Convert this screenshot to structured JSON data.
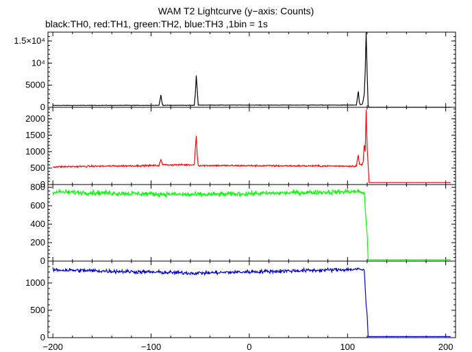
{
  "chart_data": {
    "type": "line",
    "title": "WAM T2 Lightcurve (y−axis: Counts)",
    "subtitle": "black:TH0, red:TH1, green:TH2, blue:TH3 ,1bin = 1s",
    "xlim": [
      -205,
      210
    ],
    "x_ticks": [
      -200,
      -100,
      0,
      100,
      200
    ],
    "x_tick_labels": [
      "−200",
      "−100",
      "0",
      "100",
      "200"
    ],
    "grid": false,
    "panels": [
      {
        "name": "TH0",
        "color": "#000000",
        "ylim": [
          0,
          17000
        ],
        "y_ticks": [
          0,
          5000,
          10000,
          15000
        ],
        "y_tick_labels": [
          "0",
          "5000",
          "10⁴",
          "1.5×10⁴"
        ],
        "baseline": 420,
        "noise": 40,
        "points": [
          [
            -200,
            420
          ],
          [
            -92,
            440
          ],
          [
            -91,
            1500
          ],
          [
            -90,
            2800
          ],
          [
            -89,
            1200
          ],
          [
            -88,
            450
          ],
          [
            -56,
            450
          ],
          [
            -55,
            3000
          ],
          [
            -54,
            7200
          ],
          [
            -53,
            4000
          ],
          [
            -52,
            500
          ],
          [
            109,
            500
          ],
          [
            110,
            2000
          ],
          [
            111,
            3600
          ],
          [
            112,
            1200
          ],
          [
            113,
            600
          ],
          [
            115,
            700
          ],
          [
            116,
            1500
          ],
          [
            117,
            3000
          ],
          [
            118,
            8000
          ],
          [
            119,
            17000
          ],
          [
            120,
            7500
          ],
          [
            121,
            400
          ],
          [
            122,
            0
          ],
          [
            210,
            0
          ]
        ]
      },
      {
        "name": "TH1",
        "color": "#ff0000",
        "ylim": [
          0,
          2350
        ],
        "y_ticks": [
          0,
          500,
          1000,
          1500,
          2000
        ],
        "y_tick_labels": [
          "0",
          "500",
          "1000",
          "1500",
          "2000"
        ],
        "baseline": 560,
        "noise": 22,
        "points": [
          [
            -200,
            540
          ],
          [
            -92,
            580
          ],
          [
            -90,
            760
          ],
          [
            -88,
            600
          ],
          [
            -56,
            600
          ],
          [
            -55,
            1100
          ],
          [
            -54,
            1480
          ],
          [
            -53,
            900
          ],
          [
            -52,
            580
          ],
          [
            109,
            560
          ],
          [
            110,
            750
          ],
          [
            111,
            900
          ],
          [
            112,
            620
          ],
          [
            115,
            600
          ],
          [
            116,
            700
          ],
          [
            117,
            1200
          ],
          [
            118,
            1000
          ],
          [
            119,
            2280
          ],
          [
            120,
            1100
          ],
          [
            121,
            600
          ],
          [
            122,
            60
          ],
          [
            210,
            60
          ]
        ]
      },
      {
        "name": "TH2",
        "color": "#00ff00",
        "ylim": [
          0,
          830
        ],
        "y_ticks": [
          0,
          200,
          400,
          600,
          800
        ],
        "y_tick_labels": [
          "0",
          "200",
          "400",
          "600",
          "800"
        ],
        "baseline": 755,
        "noise": 22,
        "points": [
          [
            -200,
            750
          ],
          [
            -55,
            720
          ],
          [
            110,
            755
          ],
          [
            117,
            740
          ],
          [
            118,
            580
          ],
          [
            119,
            420
          ],
          [
            120,
            280
          ],
          [
            121,
            15
          ],
          [
            210,
            15
          ]
        ]
      },
      {
        "name": "TH3",
        "color": "#0000cd",
        "ylim": [
          0,
          1400
        ],
        "y_ticks": [
          0,
          500,
          1000
        ],
        "y_tick_labels": [
          "0",
          "500",
          "1000"
        ],
        "baseline": 1245,
        "noise": 30,
        "points": [
          [
            -200,
            1240
          ],
          [
            -55,
            1180
          ],
          [
            110,
            1250
          ],
          [
            117,
            1240
          ],
          [
            118,
            900
          ],
          [
            119,
            600
          ],
          [
            120,
            400
          ],
          [
            121,
            20
          ],
          [
            210,
            20
          ]
        ]
      }
    ]
  }
}
